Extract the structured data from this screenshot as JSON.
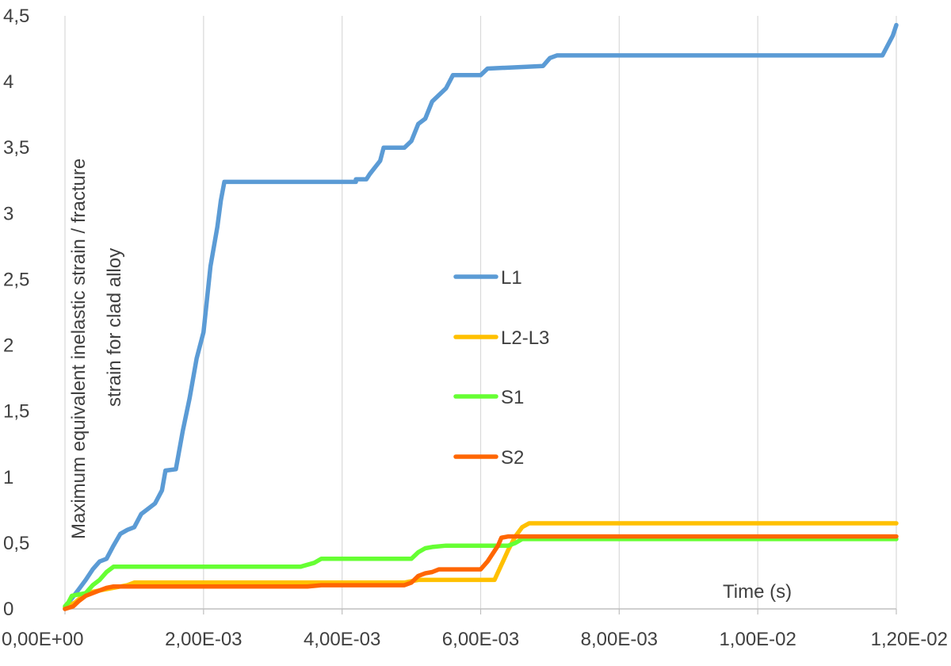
{
  "chart_data": {
    "type": "line",
    "title": "",
    "xlabel": "Time (s)",
    "ylabel_lines": [
      "Maximum equivalent inelastic  strain / fracture",
      "strain for clad alloy"
    ],
    "xlim": [
      0,
      0.012
    ],
    "ylim": [
      0,
      4.5
    ],
    "x_ticks": [
      0,
      0.002,
      0.004,
      0.006,
      0.008,
      0.01,
      0.012
    ],
    "x_tick_labels": [
      "0,00E+00",
      "2,00E-03",
      "4,00E-03",
      "6,00E-03",
      "8,00E-03",
      "1,00E-02",
      "1,20E-02"
    ],
    "y_ticks": [
      0,
      0.5,
      1,
      1.5,
      2,
      2.5,
      3,
      3.5,
      4,
      4.5
    ],
    "y_tick_labels": [
      "0",
      "0,5",
      "1",
      "1,5",
      "2",
      "2,5",
      "3",
      "3,5",
      "4",
      "4,5"
    ],
    "grid": "vertical",
    "legend_position": "center",
    "series": [
      {
        "name": "L1",
        "color": "#5b9bd5",
        "points": [
          [
            0,
            0
          ],
          [
            5e-05,
            0.05
          ],
          [
            0.0001,
            0.08
          ],
          [
            0.0002,
            0.15
          ],
          [
            0.0003,
            0.22
          ],
          [
            0.0004,
            0.3
          ],
          [
            0.0005,
            0.36
          ],
          [
            0.0006,
            0.38
          ],
          [
            0.0007,
            0.48
          ],
          [
            0.0008,
            0.57
          ],
          [
            0.0009,
            0.6
          ],
          [
            0.001,
            0.62
          ],
          [
            0.0011,
            0.72
          ],
          [
            0.0012,
            0.76
          ],
          [
            0.0013,
            0.8
          ],
          [
            0.0014,
            0.9
          ],
          [
            0.00145,
            1.05
          ],
          [
            0.0016,
            1.06
          ],
          [
            0.0017,
            1.35
          ],
          [
            0.0018,
            1.6
          ],
          [
            0.0019,
            1.9
          ],
          [
            0.002,
            2.1
          ],
          [
            0.0021,
            2.6
          ],
          [
            0.0022,
            2.9
          ],
          [
            0.00225,
            3.1
          ],
          [
            0.0023,
            3.24
          ],
          [
            0.0042,
            3.24
          ],
          [
            0.0042,
            3.26
          ],
          [
            0.00435,
            3.26
          ],
          [
            0.0044,
            3.3
          ],
          [
            0.00455,
            3.4
          ],
          [
            0.0046,
            3.5
          ],
          [
            0.0049,
            3.5
          ],
          [
            0.005,
            3.55
          ],
          [
            0.0051,
            3.68
          ],
          [
            0.0052,
            3.72
          ],
          [
            0.0053,
            3.85
          ],
          [
            0.0054,
            3.9
          ],
          [
            0.0055,
            3.95
          ],
          [
            0.0056,
            4.05
          ],
          [
            0.006,
            4.05
          ],
          [
            0.0061,
            4.1
          ],
          [
            0.0069,
            4.12
          ],
          [
            0.007,
            4.18
          ],
          [
            0.0071,
            4.2
          ],
          [
            0.0118,
            4.2
          ],
          [
            0.01195,
            4.35
          ],
          [
            0.012,
            4.43
          ]
        ]
      },
      {
        "name": "L2-L3",
        "color": "#ffc000",
        "points": [
          [
            0,
            0.01
          ],
          [
            0.00015,
            0.05
          ],
          [
            0.0003,
            0.12
          ],
          [
            0.0006,
            0.15
          ],
          [
            0.0009,
            0.18
          ],
          [
            0.001,
            0.2
          ],
          [
            0.0035,
            0.2
          ],
          [
            0.0037,
            0.2
          ],
          [
            0.0049,
            0.2
          ],
          [
            0.005,
            0.21
          ],
          [
            0.0051,
            0.22
          ],
          [
            0.0062,
            0.22
          ],
          [
            0.0064,
            0.45
          ],
          [
            0.0065,
            0.55
          ],
          [
            0.0066,
            0.62
          ],
          [
            0.0067,
            0.65
          ],
          [
            0.012,
            0.65
          ]
        ]
      },
      {
        "name": "S1",
        "color": "#66ff33",
        "points": [
          [
            0,
            0.02
          ],
          [
            5e-05,
            0.05
          ],
          [
            0.0001,
            0.1
          ],
          [
            0.0003,
            0.12
          ],
          [
            0.0004,
            0.18
          ],
          [
            0.0005,
            0.22
          ],
          [
            0.0006,
            0.28
          ],
          [
            0.0007,
            0.32
          ],
          [
            0.0034,
            0.32
          ],
          [
            0.0036,
            0.35
          ],
          [
            0.0037,
            0.38
          ],
          [
            0.005,
            0.38
          ],
          [
            0.0051,
            0.43
          ],
          [
            0.0052,
            0.46
          ],
          [
            0.0053,
            0.47
          ],
          [
            0.0055,
            0.48
          ],
          [
            0.0064,
            0.48
          ],
          [
            0.0065,
            0.5
          ],
          [
            0.0066,
            0.53
          ],
          [
            0.012,
            0.53
          ]
        ]
      },
      {
        "name": "S2",
        "color": "#ff6600",
        "points": [
          [
            0,
            0
          ],
          [
            0.00012,
            0.02
          ],
          [
            0.0002,
            0.06
          ],
          [
            0.0003,
            0.1
          ],
          [
            0.0004,
            0.12
          ],
          [
            0.0005,
            0.14
          ],
          [
            0.0006,
            0.16
          ],
          [
            0.0007,
            0.17
          ],
          [
            0.0035,
            0.17
          ],
          [
            0.0037,
            0.18
          ],
          [
            0.0049,
            0.18
          ],
          [
            0.005,
            0.2
          ],
          [
            0.0051,
            0.25
          ],
          [
            0.0052,
            0.27
          ],
          [
            0.0053,
            0.28
          ],
          [
            0.0054,
            0.3
          ],
          [
            0.006,
            0.3
          ],
          [
            0.0061,
            0.36
          ],
          [
            0.00625,
            0.48
          ],
          [
            0.0063,
            0.54
          ],
          [
            0.0064,
            0.55
          ],
          [
            0.012,
            0.55
          ]
        ]
      }
    ]
  }
}
